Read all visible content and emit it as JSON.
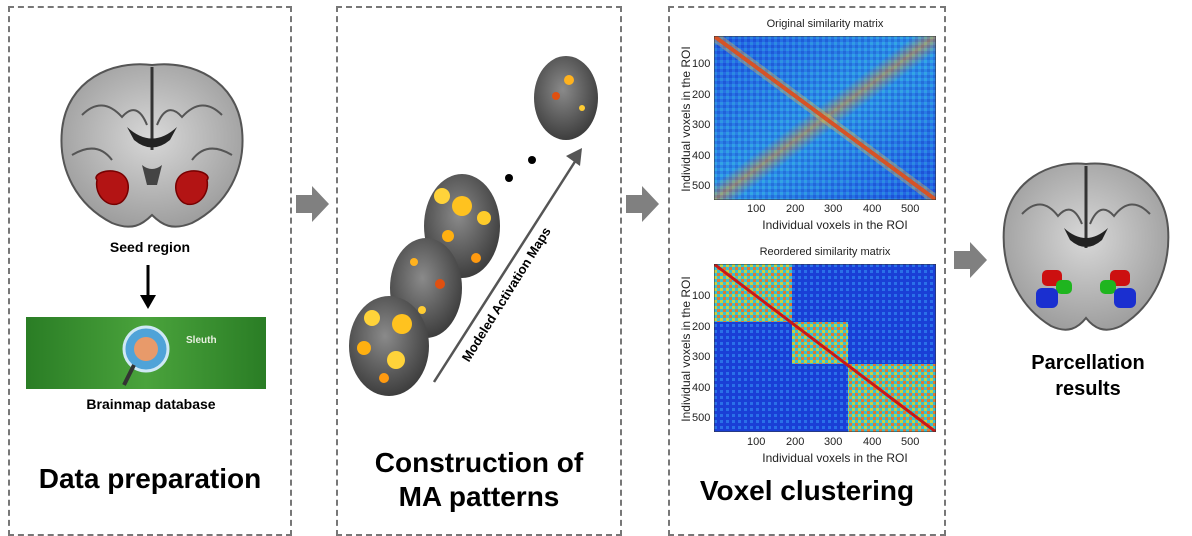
{
  "panel1": {
    "seed_label": "Seed region",
    "db_logo_text": "Sleuth",
    "db_label": "Brainmap database",
    "title": "Data preparation"
  },
  "panel2": {
    "diagonal_label": "Modeled Activation Maps",
    "title_line1": "Construction of",
    "title_line2": "MA patterns"
  },
  "panel3": {
    "title": "Voxel clustering",
    "matrix1": {
      "title": "Original similarity matrix",
      "xlabel": "Individual voxels in the ROI",
      "ylabel": "Individual voxels in the ROI",
      "xticks": [
        "100",
        "200",
        "300",
        "400",
        "500"
      ],
      "yticks": [
        "100",
        "200",
        "300",
        "400",
        "500"
      ]
    },
    "matrix2": {
      "title": "Reordered similarity matrix",
      "xlabel": "Individual voxels in the ROI",
      "ylabel": "Individual voxels in the ROI",
      "xticks": [
        "100",
        "200",
        "300",
        "400",
        "500"
      ],
      "yticks": [
        "100",
        "200",
        "300",
        "400",
        "500"
      ]
    }
  },
  "panel4": {
    "result_line1": "Parcellation",
    "result_line2": "results"
  },
  "colors": {
    "gray_arrow": "#808080",
    "seed_red": "#b31414",
    "matrix_blue": "#1a3fd6",
    "db_green": "#2f8f2a"
  }
}
